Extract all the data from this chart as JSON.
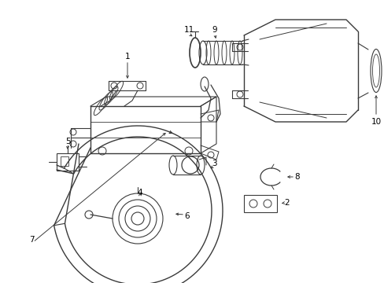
{
  "background_color": "#ffffff",
  "line_color": "#3a3a3a",
  "label_color": "#000000",
  "fig_width": 4.89,
  "fig_height": 3.6,
  "dpi": 100
}
